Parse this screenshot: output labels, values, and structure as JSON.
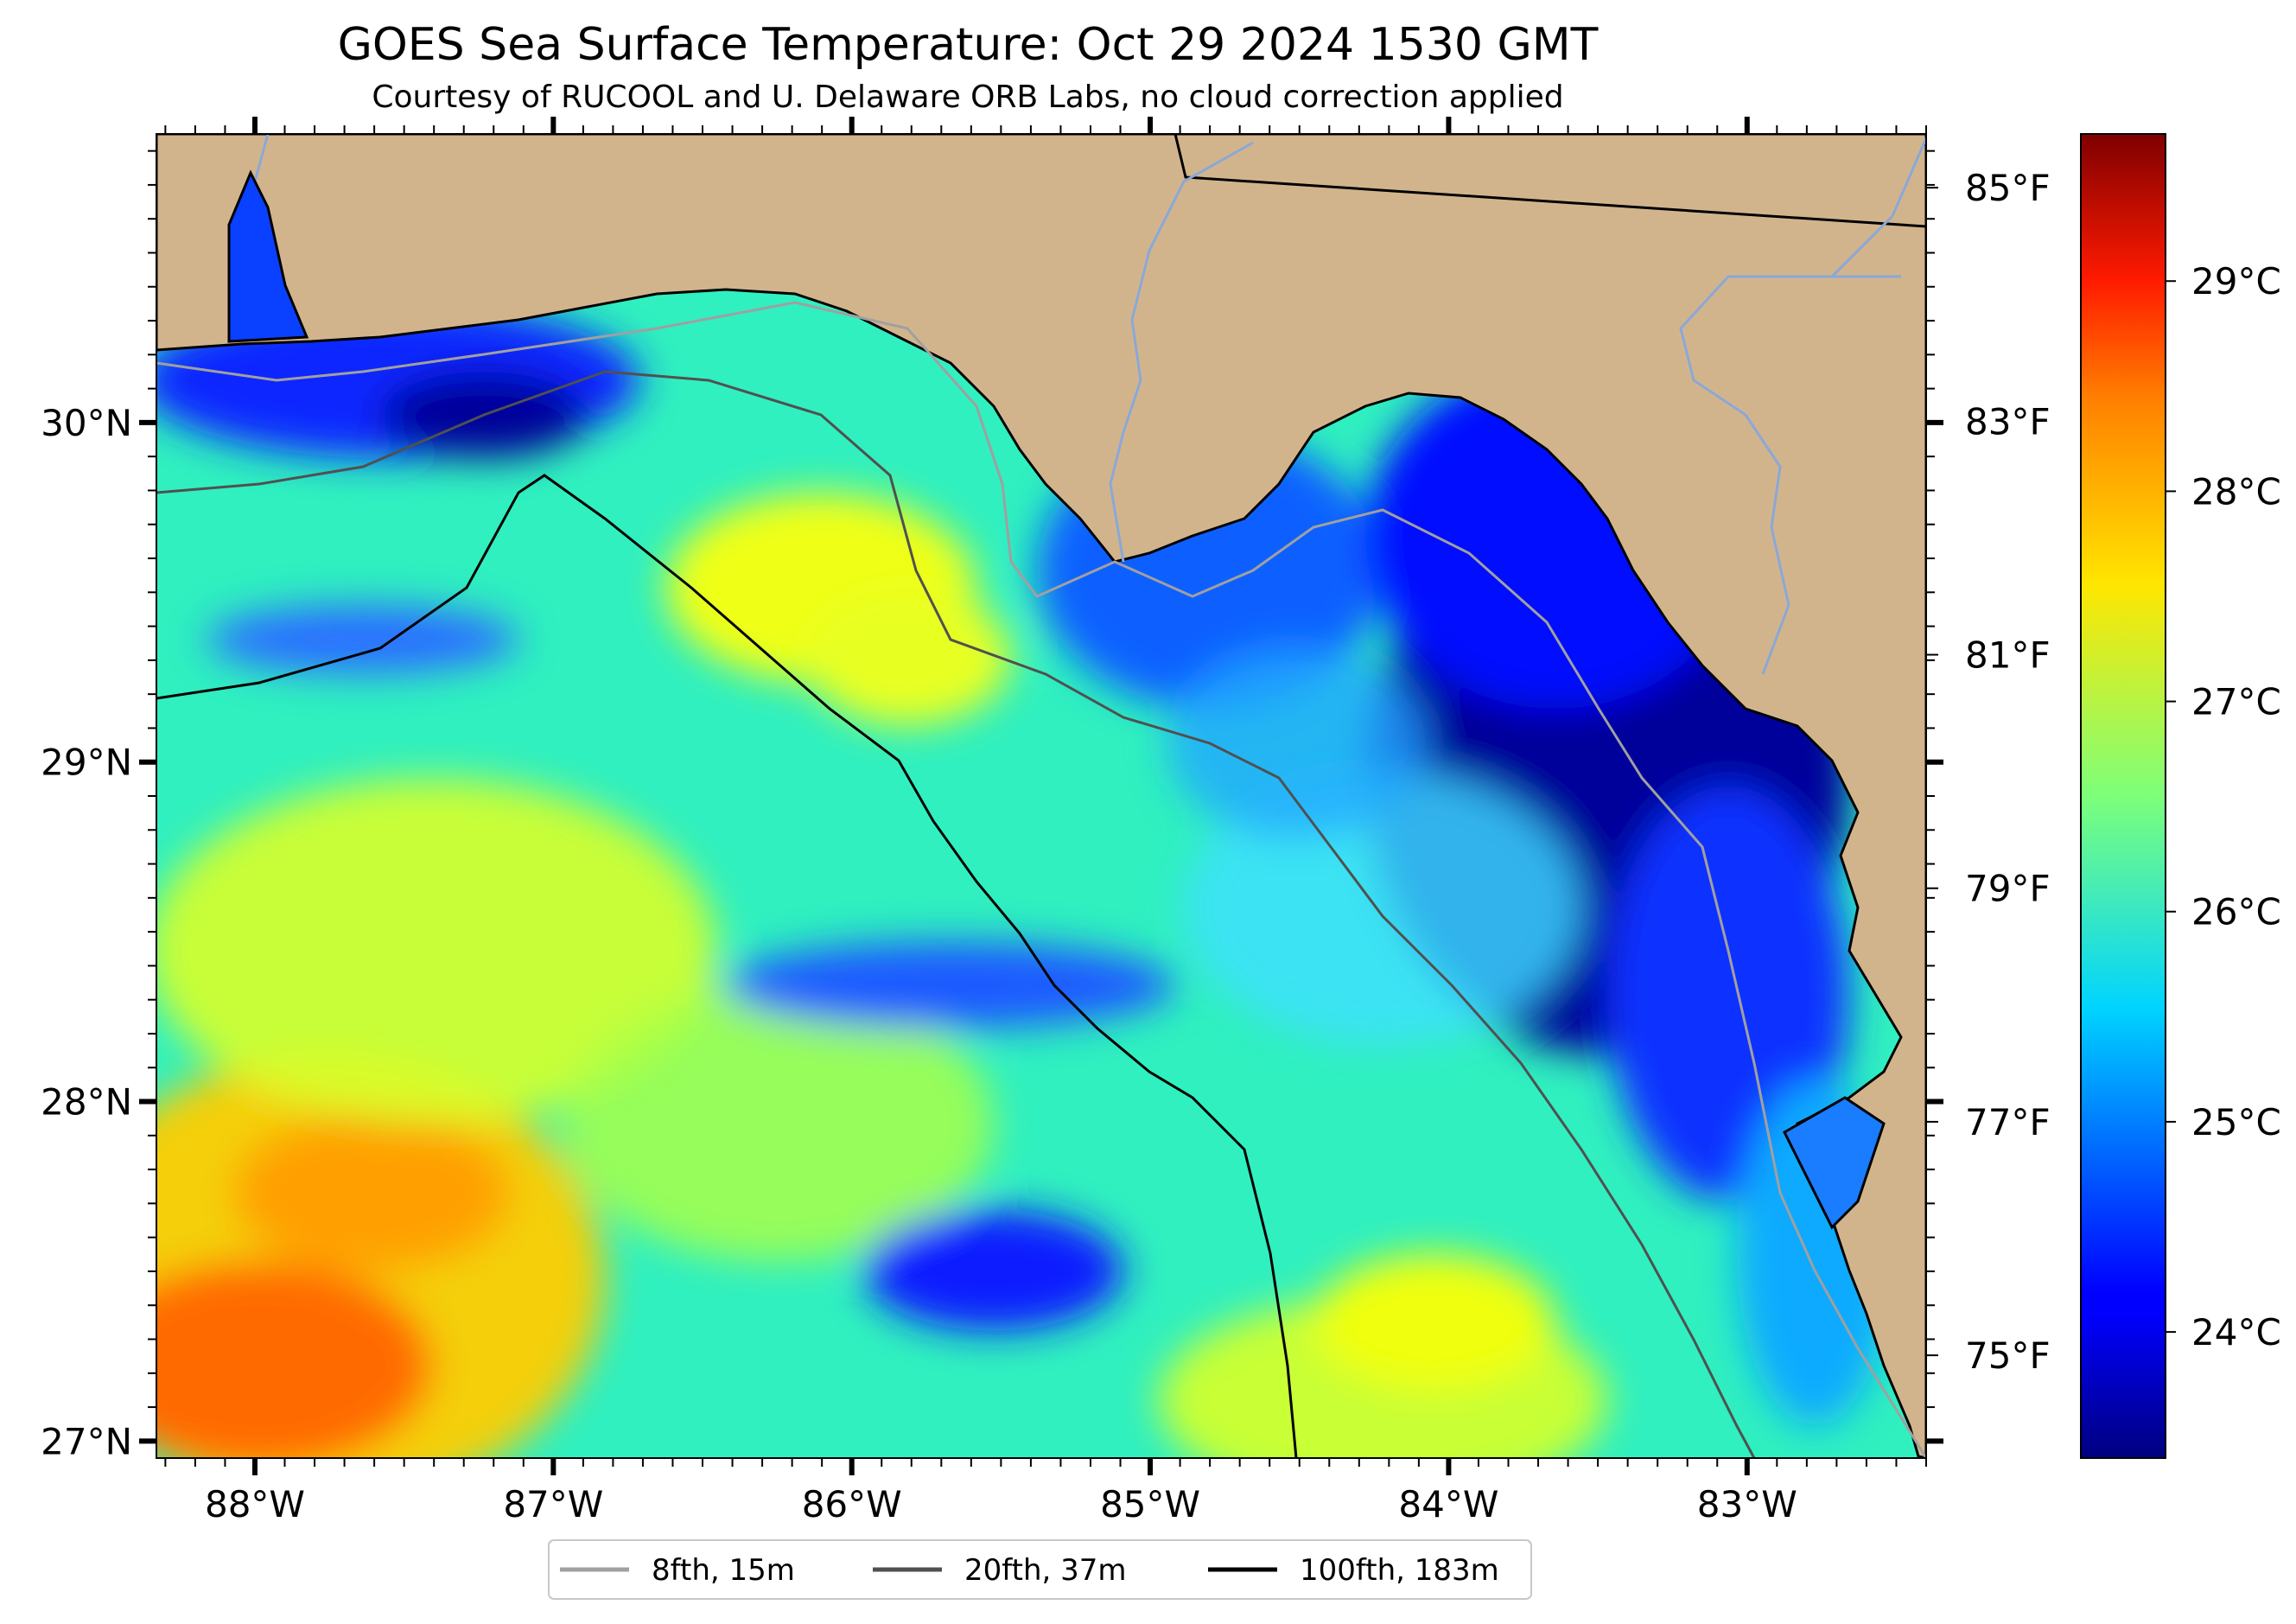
{
  "title": "GOES Sea Surface Temperature: Oct 29 2024 1530 GMT",
  "subtitle": "Courtesy of RUCOOL and U. Delaware ORB Labs, no cloud correction applied",
  "map": {
    "region": "Northeastern Gulf of Mexico / Florida Big Bend",
    "land_color": "#d2b48c",
    "lat_range": [
      26.95,
      30.85
    ],
    "lon_range": [
      -88.33,
      -82.4
    ],
    "lat_ticks": [
      {
        "value": 30,
        "label": "30°N"
      },
      {
        "value": 29,
        "label": "29°N"
      },
      {
        "value": 28,
        "label": "28°N"
      },
      {
        "value": 27,
        "label": "27°N"
      }
    ],
    "lon_ticks": [
      {
        "value": -88,
        "label": "88°W"
      },
      {
        "value": -87,
        "label": "87°W"
      },
      {
        "value": -86,
        "label": "86°W"
      },
      {
        "value": -85,
        "label": "85°W"
      },
      {
        "value": -84,
        "label": "84°W"
      },
      {
        "value": -83,
        "label": "83°W"
      }
    ]
  },
  "colorbar": {
    "colormap": "jet",
    "celsius_range": [
      23.4,
      29.7
    ],
    "fahrenheit_ticks": [
      {
        "value": 85,
        "label": "85°F"
      },
      {
        "value": 83,
        "label": "83°F"
      },
      {
        "value": 81,
        "label": "81°F"
      },
      {
        "value": 79,
        "label": "79°F"
      },
      {
        "value": 77,
        "label": "77°F"
      },
      {
        "value": 75,
        "label": "75°F"
      }
    ],
    "celsius_ticks": [
      {
        "value": 29,
        "label": "29°C"
      },
      {
        "value": 28,
        "label": "28°C"
      },
      {
        "value": 27,
        "label": "27°C"
      },
      {
        "value": 26,
        "label": "26°C"
      },
      {
        "value": 25,
        "label": "25°C"
      },
      {
        "value": 24,
        "label": "24°C"
      }
    ]
  },
  "legend": [
    {
      "label": "8fth, 15m",
      "color": "#a0a0a0"
    },
    {
      "label": "20fth, 37m",
      "color": "#505050"
    },
    {
      "label": "100fth, 183m",
      "color": "#000000"
    }
  ]
}
